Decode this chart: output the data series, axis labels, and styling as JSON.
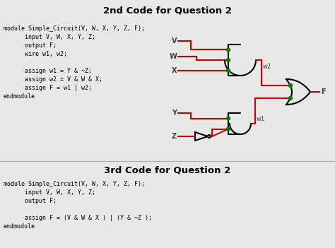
{
  "title1": "2nd Code for Question 2",
  "title2": "3rd Code for Question 2",
  "code1_lines": [
    "module Simple_Circuit(V, W, X, Y, Z, F);",
    "      input V, W, X, Y, Z;",
    "      output F;",
    "      wire w1, w2;",
    "",
    "      assign w1 = Y & ~Z;",
    "      assign w2 = V & W & X;",
    "      assign F = w1 | w2;",
    "endmodule"
  ],
  "code2_lines": [
    "module Simple_Circuit(V, W, X, Y, Z, F);",
    "      input V, W, X, Y, Z;",
    "      output F;",
    "",
    "      assign F = (V & W & X ) | (Y & ~Z );",
    "endmodule"
  ],
  "bg_color": "#e8e8e8",
  "text_color": "#000000",
  "wire_color": "#cc0000",
  "gate_color": "#000000",
  "dot_color": "#008000",
  "label_color": "#404040",
  "font_size_title": 9.5,
  "font_size_code": 6.0,
  "font_size_label": 7.0,
  "font_size_wire_label": 6.0
}
